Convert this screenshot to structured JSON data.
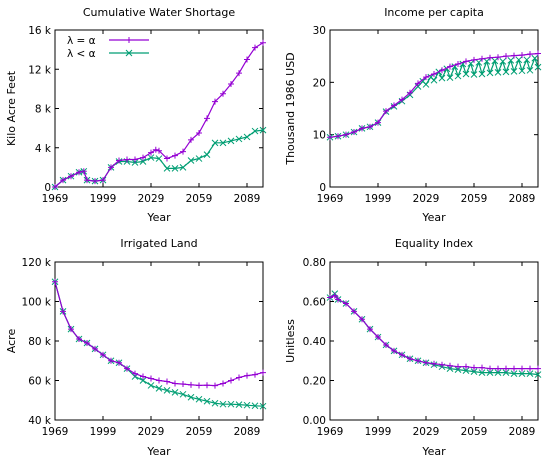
{
  "chart_data": [
    {
      "type": "line",
      "title": "Cumulative Water Shortage",
      "xlabel": "Year",
      "ylabel": "Kilo Acre Feet",
      "xlim": [
        1969,
        2099
      ],
      "ylim": [
        0,
        16000
      ],
      "xticks": [
        1969,
        1999,
        2029,
        2059,
        2089
      ],
      "yticks": [
        0,
        4000,
        8000,
        12000,
        16000
      ],
      "ytick_labels": [
        "0",
        "4 k",
        "8 k",
        "12 k",
        "16 k"
      ],
      "grid": false,
      "legend": "top-left",
      "series": [
        {
          "name": "λ = α",
          "marker": "plus",
          "color": "#9400d3",
          "x": [
            1969,
            1974,
            1979,
            1984,
            1987,
            1989,
            1994,
            1999,
            2004,
            2009,
            2014,
            2019,
            2024,
            2029,
            2032,
            2034,
            2039,
            2044,
            2049,
            2054,
            2059,
            2064,
            2069,
            2074,
            2079,
            2084,
            2089,
            2094,
            2099
          ],
          "values": [
            0,
            700,
            1100,
            1500,
            1600,
            700,
            600,
            700,
            2000,
            2700,
            2800,
            2800,
            3000,
            3500,
            3800,
            3700,
            2900,
            3200,
            3600,
            4800,
            5500,
            7000,
            8700,
            9500,
            10500,
            11600,
            13000,
            14200,
            14700
          ]
        },
        {
          "name": "λ < α",
          "marker": "cross",
          "color": "#009e73",
          "x": [
            1969,
            1974,
            1979,
            1984,
            1987,
            1989,
            1994,
            1999,
            2004,
            2009,
            2014,
            2019,
            2024,
            2029,
            2034,
            2039,
            2044,
            2049,
            2054,
            2059,
            2064,
            2069,
            2074,
            2079,
            2084,
            2089,
            2094,
            2099
          ],
          "values": [
            0,
            700,
            1100,
            1500,
            1600,
            700,
            600,
            700,
            2000,
            2600,
            2600,
            2500,
            2600,
            3000,
            2900,
            1900,
            1900,
            2000,
            2700,
            2900,
            3300,
            4500,
            4500,
            4700,
            4900,
            5100,
            5700,
            5800
          ]
        }
      ]
    },
    {
      "type": "line",
      "title": "Income per capita",
      "xlabel": "Year",
      "ylabel": "Thousand 1986 USD",
      "xlim": [
        1969,
        2099
      ],
      "ylim": [
        0,
        30
      ],
      "xticks": [
        1969,
        1999,
        2029,
        2059,
        2089
      ],
      "yticks": [
        0,
        10,
        20,
        30
      ],
      "ytick_labels": [
        "0",
        "10",
        "20",
        "30"
      ],
      "grid": false,
      "series": [
        {
          "name": "λ = α",
          "marker": "plus",
          "color": "#9400d3",
          "x": [
            1969,
            1974,
            1979,
            1984,
            1989,
            1994,
            1999,
            2004,
            2009,
            2014,
            2019,
            2024,
            2029,
            2034,
            2039,
            2044,
            2049,
            2054,
            2059,
            2064,
            2069,
            2074,
            2079,
            2084,
            2089,
            2094,
            2099
          ],
          "values": [
            9.5,
            9.7,
            10.0,
            10.5,
            11.2,
            11.5,
            12.3,
            14.5,
            15.6,
            16.7,
            18.0,
            19.8,
            21.0,
            21.6,
            22.3,
            23.0,
            23.5,
            24.0,
            24.3,
            24.5,
            24.7,
            24.8,
            25.0,
            25.1,
            25.2,
            25.4,
            25.5
          ]
        },
        {
          "name": "λ < α",
          "marker": "cross",
          "color": "#009e73",
          "x": [
            1969,
            1974,
            1979,
            1984,
            1989,
            1994,
            1999,
            2004,
            2009,
            2014,
            2019,
            2024,
            2027,
            2029,
            2032,
            2034,
            2037,
            2039,
            2042,
            2044,
            2047,
            2049,
            2052,
            2054,
            2057,
            2059,
            2062,
            2064,
            2067,
            2069,
            2072,
            2074,
            2077,
            2079,
            2082,
            2084,
            2087,
            2089,
            2092,
            2094,
            2097,
            2099
          ],
          "values": [
            9.5,
            9.7,
            10.0,
            10.5,
            11.2,
            11.5,
            12.3,
            14.4,
            15.4,
            16.4,
            17.6,
            19.2,
            20.2,
            19.6,
            21.0,
            20.4,
            22.0,
            20.8,
            22.6,
            20.9,
            23.0,
            21.2,
            23.5,
            21.6,
            23.6,
            21.5,
            23.8,
            21.6,
            24.0,
            21.8,
            24.1,
            21.9,
            24.0,
            22.0,
            24.2,
            22.1,
            24.3,
            22.2,
            24.3,
            22.3,
            24.6,
            22.9
          ]
        }
      ]
    },
    {
      "type": "line",
      "title": "Irrigated Land",
      "xlabel": "Year",
      "ylabel": "Acre",
      "xlim": [
        1969,
        2099
      ],
      "ylim": [
        40000,
        120000
      ],
      "xticks": [
        1969,
        1999,
        2029,
        2059,
        2089
      ],
      "yticks": [
        40000,
        60000,
        80000,
        100000,
        120000
      ],
      "ytick_labels": [
        "40 k",
        "60 k",
        "80 k",
        "100 k",
        "120 k"
      ],
      "grid": false,
      "series": [
        {
          "name": "λ = α",
          "marker": "plus",
          "color": "#9400d3",
          "x": [
            1969,
            1974,
            1979,
            1984,
            1989,
            1994,
            1999,
            2004,
            2009,
            2014,
            2019,
            2024,
            2029,
            2034,
            2039,
            2044,
            2049,
            2054,
            2059,
            2064,
            2069,
            2074,
            2079,
            2084,
            2089,
            2094,
            2099
          ],
          "values": [
            110000,
            95000,
            86000,
            81000,
            79000,
            76000,
            73000,
            70000,
            69000,
            66000,
            63500,
            62000,
            61000,
            60000,
            59500,
            58500,
            58200,
            57800,
            57500,
            57600,
            57400,
            58500,
            60000,
            61500,
            62500,
            63000,
            64000
          ]
        },
        {
          "name": "λ < α",
          "marker": "cross",
          "color": "#009e73",
          "x": [
            1969,
            1974,
            1979,
            1984,
            1989,
            1994,
            1999,
            2004,
            2009,
            2014,
            2019,
            2024,
            2029,
            2034,
            2039,
            2044,
            2049,
            2054,
            2059,
            2064,
            2069,
            2074,
            2079,
            2084,
            2089,
            2094,
            2099
          ],
          "values": [
            110000,
            95000,
            86000,
            81000,
            79000,
            76000,
            73000,
            70000,
            69000,
            66000,
            62000,
            60000,
            57500,
            56000,
            55000,
            54000,
            53000,
            51500,
            50500,
            49500,
            48500,
            48000,
            48000,
            47800,
            47500,
            47200,
            47000
          ]
        }
      ]
    },
    {
      "type": "line",
      "title": "Equality Index",
      "xlabel": "Year",
      "ylabel": "Unitless",
      "xlim": [
        1969,
        2099
      ],
      "ylim": [
        0,
        0.8
      ],
      "xticks": [
        1969,
        1999,
        2029,
        2059,
        2089
      ],
      "yticks": [
        0,
        0.2,
        0.4,
        0.6,
        0.8
      ],
      "ytick_labels": [
        "0.00",
        "0.20",
        "0.40",
        "0.60",
        "0.80"
      ],
      "grid": false,
      "series": [
        {
          "name": "λ = α",
          "marker": "plus",
          "color": "#9400d3",
          "x": [
            1969,
            1972,
            1974,
            1979,
            1984,
            1989,
            1994,
            1999,
            2004,
            2009,
            2014,
            2019,
            2024,
            2029,
            2034,
            2039,
            2044,
            2049,
            2054,
            2059,
            2064,
            2069,
            2074,
            2079,
            2084,
            2089,
            2094,
            2099
          ],
          "values": [
            0.62,
            0.63,
            0.61,
            0.59,
            0.55,
            0.51,
            0.46,
            0.42,
            0.38,
            0.35,
            0.33,
            0.31,
            0.3,
            0.29,
            0.285,
            0.28,
            0.275,
            0.27,
            0.27,
            0.265,
            0.265,
            0.26,
            0.26,
            0.26,
            0.26,
            0.26,
            0.26,
            0.26
          ]
        },
        {
          "name": "λ < α",
          "marker": "cross",
          "color": "#009e73",
          "x": [
            1969,
            1972,
            1974,
            1979,
            1984,
            1989,
            1994,
            1999,
            2004,
            2009,
            2014,
            2019,
            2024,
            2029,
            2034,
            2039,
            2044,
            2049,
            2054,
            2059,
            2064,
            2069,
            2074,
            2079,
            2084,
            2089,
            2094,
            2099
          ],
          "values": [
            0.62,
            0.64,
            0.61,
            0.59,
            0.55,
            0.51,
            0.46,
            0.42,
            0.38,
            0.35,
            0.33,
            0.31,
            0.3,
            0.29,
            0.28,
            0.27,
            0.26,
            0.255,
            0.25,
            0.245,
            0.24,
            0.24,
            0.24,
            0.24,
            0.235,
            0.235,
            0.235,
            0.23
          ]
        }
      ]
    }
  ]
}
